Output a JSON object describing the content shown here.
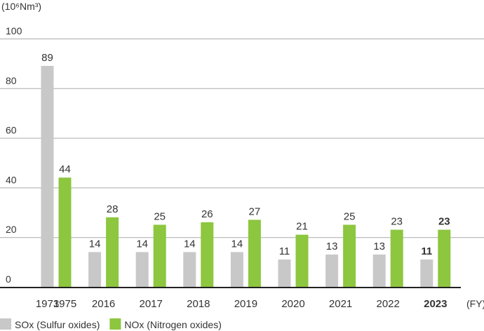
{
  "chart_data": {
    "type": "bar",
    "unit_label": "(10⁶Nm³)",
    "x_unit": "(FY)",
    "ylim": [
      0,
      100
    ],
    "yticks": [
      0,
      20,
      40,
      60,
      80,
      100
    ],
    "grid": true,
    "legend_position": "bottom-left",
    "colors": {
      "sox": "#c8c8c8",
      "nox": "#8dc63f",
      "grid": "#aaaaaa",
      "axis": "#222222"
    },
    "groups": [
      {
        "sox_label": "1973",
        "nox_label": "1975",
        "sox": 89,
        "nox": 44,
        "bold": false
      },
      {
        "label": "2016",
        "sox": 14,
        "nox": 28,
        "bold": false
      },
      {
        "label": "2017",
        "sox": 14,
        "nox": 25,
        "bold": false
      },
      {
        "label": "2018",
        "sox": 14,
        "nox": 26,
        "bold": false
      },
      {
        "label": "2019",
        "sox": 14,
        "nox": 27,
        "bold": false
      },
      {
        "label": "2020",
        "sox": 11,
        "nox": 21,
        "bold": false
      },
      {
        "label": "2021",
        "sox": 13,
        "nox": 25,
        "bold": false
      },
      {
        "label": "2022",
        "sox": 13,
        "nox": 23,
        "bold": false
      },
      {
        "label": "2023",
        "sox": 11,
        "nox": 23,
        "bold": true
      }
    ],
    "series": [
      {
        "key": "sox",
        "name": "SOx (Sulfur oxides)"
      },
      {
        "key": "nox",
        "name": "NOx (Nitrogen oxides)"
      }
    ]
  }
}
